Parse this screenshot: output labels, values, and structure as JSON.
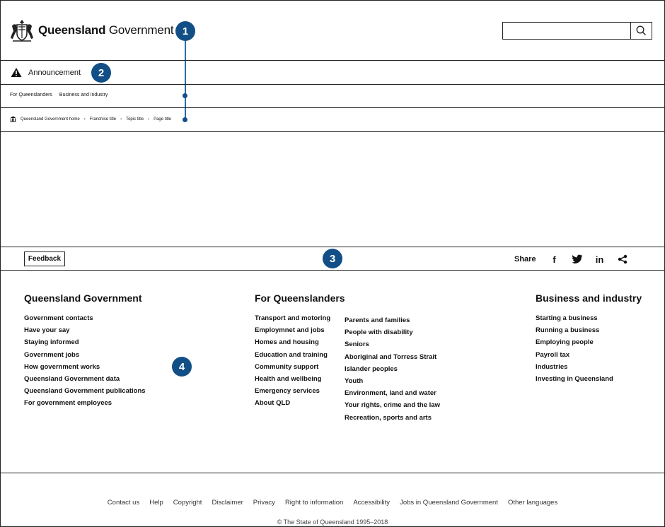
{
  "header": {
    "logo_bold": "Queensland",
    "logo_light": "Government",
    "search": {
      "value": "",
      "placeholder": "",
      "icon": "search-icon"
    }
  },
  "markers": [
    "1",
    "2",
    "3",
    "4"
  ],
  "announcement": {
    "icon": "warning-icon",
    "label": "Announcement"
  },
  "top_nav": [
    "For Queenslanders",
    "Business and industry"
  ],
  "breadcrumb": {
    "icon": "government-building-icon",
    "items": [
      "Queensland Government home",
      "Franchise title",
      "Topic title",
      "Page title"
    ],
    "separator": "›"
  },
  "feedback": {
    "label": "Feedback"
  },
  "share": {
    "label": "Share",
    "icons": [
      "facebook-icon",
      "twitter-icon",
      "linkedin-icon",
      "share-icon"
    ],
    "facebook_glyph": "f",
    "linkedin_glyph": "in"
  },
  "footer": {
    "columns": [
      {
        "title": "Queensland Government",
        "links": [
          "Government contacts",
          "Have your say",
          "Staying informed",
          "Government jobs",
          "How government works",
          "Queensland Government data",
          "Queensland Government publications",
          "For government employees"
        ]
      },
      {
        "title": "For Queenslanders",
        "links": [
          "Transport and motoring",
          "Employmnet and jobs",
          "Homes and housing",
          "Education and training",
          "Community support",
          "Health and wellbeing",
          "Emergency services",
          "About QLD"
        ]
      },
      {
        "title": "",
        "links": [
          "Parents and families",
          "People with disability",
          "Seniors",
          "Aboriginal and Torress Strait",
          "Islander peoples",
          "Youth",
          "Environment, land and water",
          "Your rights, crime and the law",
          "Recreation, sports and arts"
        ]
      },
      {
        "title": "Business and industry",
        "links": [
          "Starting a business",
          "Running a business",
          "Employing people",
          "Payroll tax",
          "Industries",
          "Investing in Queensland"
        ]
      }
    ]
  },
  "bottom_links": [
    "Contact us",
    "Help",
    "Copyright",
    "Disclaimer",
    "Privacy",
    "Right to information",
    "Accessibility",
    "Jobs in Queensland Government",
    "Other languages"
  ],
  "copyright": "© The State of Queensland 1995–2018",
  "colors": {
    "marker": "#124f86",
    "marker_line": "#2b6aa6",
    "border": "#222222"
  }
}
